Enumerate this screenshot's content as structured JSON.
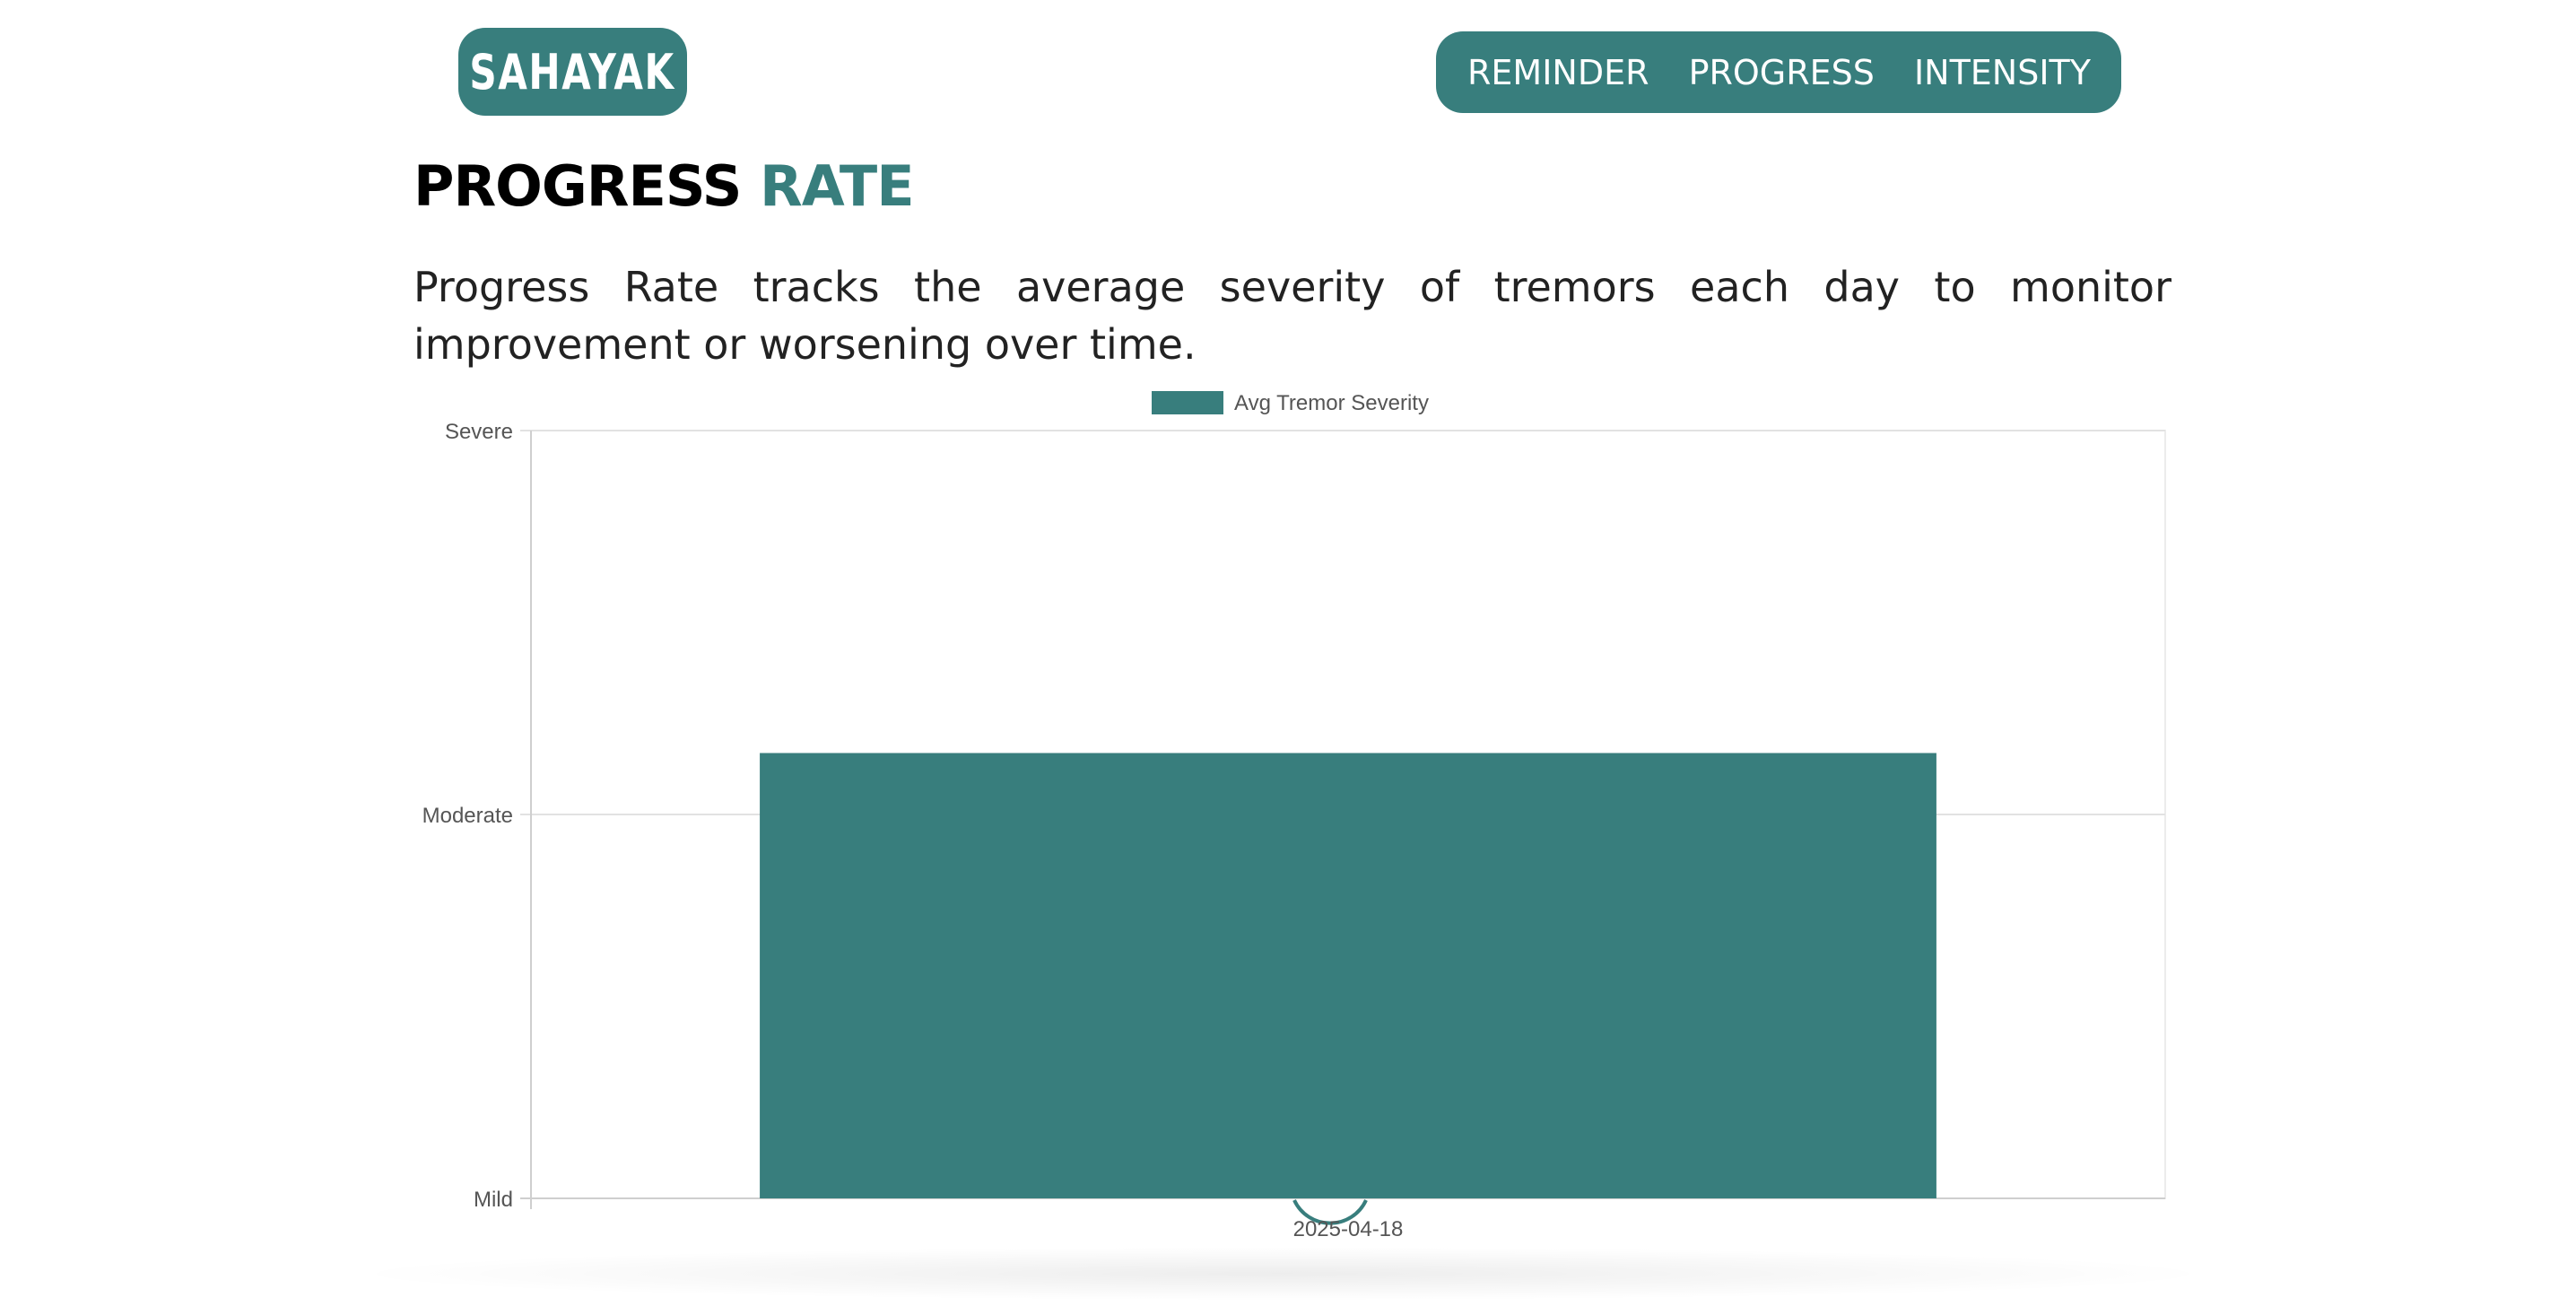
{
  "header": {
    "logo_text": "SAHAYAK",
    "nav": [
      {
        "label": "REMINDER"
      },
      {
        "label": "PROGRESS"
      },
      {
        "label": "INTENSITY"
      }
    ]
  },
  "main": {
    "title_part1": "PROGRESS",
    "title_part2": "RATE",
    "description": "Progress Rate tracks the average severity of tremors each day to monitor improvement or worsening over time."
  },
  "colors": {
    "accent": "#387e7d",
    "grid": "#e2e2e2",
    "axis_text": "#555555"
  },
  "chart_data": {
    "type": "bar",
    "categories": [
      "2025-04-18"
    ],
    "series": [
      {
        "name": "Avg Tremor Severity",
        "values": [
          2.16
        ],
        "color": "#387e7d"
      }
    ],
    "y_ticks": [
      {
        "value": 1,
        "label": "Mild"
      },
      {
        "value": 2,
        "label": "Moderate"
      },
      {
        "value": 3,
        "label": "Severe"
      }
    ],
    "ylim": [
      1,
      3
    ],
    "grid": true,
    "legend_position": "top-center"
  }
}
